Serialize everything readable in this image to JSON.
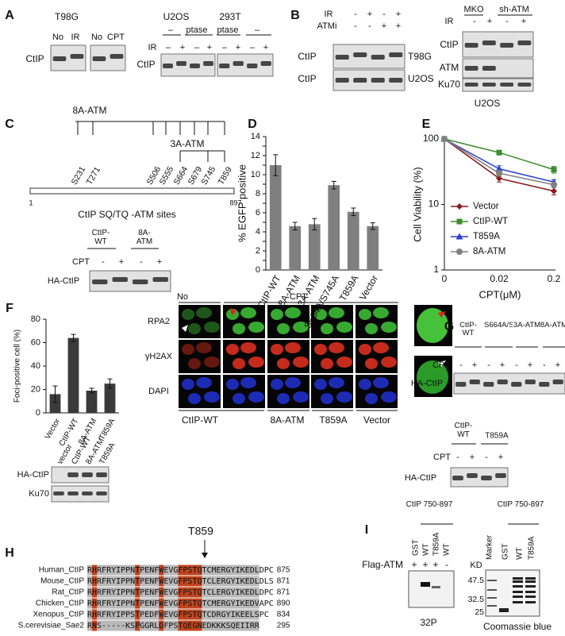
{
  "figure": {
    "A": {
      "label": "A",
      "t98g_title": "T98G",
      "t98g_lanes": [
        "No",
        "IR",
        "No",
        "CPT"
      ],
      "t98g_row": "CtIP",
      "u2os_title": "U2OS",
      "t293_title": "293T",
      "ptase": [
        "–",
        "ptase",
        "ptase",
        "–"
      ],
      "ir_label": "IR",
      "ir": [
        "–",
        "+",
        "–",
        "+",
        "–",
        "+",
        "–",
        "+"
      ],
      "row": "CtIP"
    },
    "B": {
      "label": "B",
      "ir_label": "IR",
      "ir": [
        "-",
        "+",
        "-",
        "+"
      ],
      "atmi_label": "ATMi",
      "atmi": [
        "-",
        "-",
        "+",
        "+"
      ],
      "rows": [
        "CtIP",
        "CtIP"
      ],
      "cells": [
        "T98G",
        "U2OS"
      ],
      "groups": [
        "MKO",
        "sh-ATM"
      ],
      "ir2_label": "IR",
      "ir2": [
        "-",
        "+",
        "-",
        "+"
      ],
      "rows2": [
        "CtIP",
        "ATM",
        "Ku70"
      ],
      "cell2": "U2OS"
    },
    "C": {
      "label": "C",
      "group_8a": "8A-ATM",
      "group_3a": "3A-ATM",
      "sites": [
        "S231",
        "T271",
        "S506",
        "S555",
        "S664",
        "S679",
        "S745",
        "T859"
      ],
      "start": "1",
      "end": "897",
      "caption": "CtIP SQ/TQ -ATM sites",
      "lanes": [
        "CtIP-WT",
        "8A-ATM"
      ],
      "cpt_label": "CPT",
      "cpt": [
        "-",
        "+",
        "-",
        "+"
      ],
      "row": "HA-CtIP"
    },
    "F": {
      "label": "F",
      "no": "No",
      "cpt": "CPT",
      "rows": [
        "RPA2",
        "γH2AX",
        "DAPI"
      ],
      "columns": [
        "CtIP-WT",
        "8A-ATM",
        "T859A",
        "Vector"
      ],
      "blot_lanes": [
        "vector",
        "CtIP-WT",
        "8A-ATM",
        "T859A"
      ],
      "blot_rows": [
        "HA-CtIP",
        "Ku70"
      ]
    },
    "G": {
      "label": "G",
      "lanes": [
        "CtIP-WT",
        "S664A/S745A",
        "3A-ATM",
        "8A-ATM"
      ],
      "cpt_label": "CPT",
      "cpt": [
        "-",
        "+",
        "-",
        "+",
        "-",
        "+",
        "-",
        "+"
      ],
      "row": "HA-CtIP",
      "lanes2": [
        "CtIP-WT",
        "T859A"
      ],
      "cpt2_label": "CPT",
      "cpt2": [
        "-",
        "+",
        "-",
        "+"
      ],
      "row2": "HA-CtIP"
    },
    "H": {
      "label": "H",
      "marker": "T859",
      "rows": [
        {
          "name": "Human_CtIP",
          "seq": "RHRFRYIPPNTPENFWEVGFPSTQTCMERGYIKEDLDPC",
          "end": "875"
        },
        {
          "name": "Mouse_CtIP",
          "seq": "RHRFRYIPPNTPENFWEVGFPSTQTCLERGYIKEDLDLS",
          "end": "871"
        },
        {
          "name": "Rat_CtIP",
          "seq": "RHRFRYIPPNTPENFWEVGFPSTQTCLERGYIKEDLDPC",
          "end": "871"
        },
        {
          "name": "Chicken_CtIP",
          "seq": "RHRFRYIPPNTPENFWEVGFPSTQTCMERGYIKEDVAPC",
          "end": "890"
        },
        {
          "name": "Xenopus_CtIP",
          "seq": "RHRFRYIPPSTPEDFWEVGFPSTQTCDRGYIKEELSPC",
          "end": "834"
        },
        {
          "name": "S.cerevisiae_Sae2",
          "seq": "RNS-----KSPGGRLDFPSTQEGNEDKKKSQEIIRR",
          "end": "295"
        }
      ]
    },
    "I": {
      "label": "I",
      "construct": "CtIP 750-897",
      "lanes": [
        "GST",
        "WT",
        "T859A",
        "WT"
      ],
      "flag_label": "Flag-ATM",
      "flag": [
        "+",
        "+",
        "+",
        "-"
      ],
      "left_caption": "32P",
      "construct2": "CtIP 750-897",
      "lanes2": [
        "Marker",
        "GST",
        "WT",
        "T859A"
      ],
      "kd": "KD",
      "markers": [
        "47.5",
        "32.5",
        "25"
      ],
      "right_caption": "Coomassie blue"
    }
  },
  "chart_data": [
    {
      "type": "bar",
      "label": "D",
      "ylabel": "% EGFP positive",
      "categories": [
        "CtIP-WT",
        "8A-ATM",
        "3A-ATM",
        "S664A/S745A",
        "T859A",
        "Vector"
      ],
      "values": [
        11,
        4.6,
        4.8,
        8.9,
        6.1,
        4.6
      ],
      "errors": [
        1.1,
        0.4,
        0.6,
        0.4,
        0.4,
        0.35
      ],
      "color": "#7f7f7f",
      "ylim": [
        0,
        14
      ],
      "yticks": [
        0,
        1,
        2,
        3,
        4,
        5,
        6,
        7,
        8,
        9,
        10,
        11,
        12,
        13,
        14
      ],
      "ytick_labels_every": 2
    },
    {
      "type": "line",
      "label": "E",
      "ylabel": "Cell Viability (%)",
      "xlabel": "CPT(μM)",
      "log_y": true,
      "categories": [
        "0",
        "0.02",
        "0.2"
      ],
      "ylim": [
        1,
        100
      ],
      "yticks": [
        1,
        10,
        100
      ],
      "legend": "lower left",
      "series": [
        {
          "name": "Vector",
          "color": "#8b1a1a",
          "marker": "diamond",
          "values": [
            100,
            25,
            16
          ],
          "errors": [
            0,
            3,
            2
          ]
        },
        {
          "name": "CtIP-WT",
          "color": "#3a8f2a",
          "marker": "square",
          "values": [
            100,
            62,
            34
          ],
          "errors": [
            0,
            5,
            4
          ]
        },
        {
          "name": "T859A",
          "color": "#2a3fd6",
          "marker": "triangle",
          "values": [
            100,
            35,
            22
          ],
          "errors": [
            0,
            4,
            2
          ]
        },
        {
          "name": "8A-ATM",
          "color": "#808080",
          "marker": "circle",
          "values": [
            100,
            30,
            20
          ],
          "errors": [
            0,
            3,
            2
          ]
        }
      ]
    },
    {
      "type": "bar",
      "ylabel": "Foci-positive cell (%)",
      "categories": [
        "Vector",
        "CtIP-WT",
        "8A-ATM",
        "T859A"
      ],
      "values": [
        16,
        64,
        19,
        25
      ],
      "errors": [
        7,
        3,
        2,
        4
      ],
      "color": "#3a3a3a",
      "ylim": [
        0,
        80
      ],
      "yticks": [
        0,
        20,
        40,
        60,
        80
      ],
      "ytick_labels_every": 1
    }
  ]
}
